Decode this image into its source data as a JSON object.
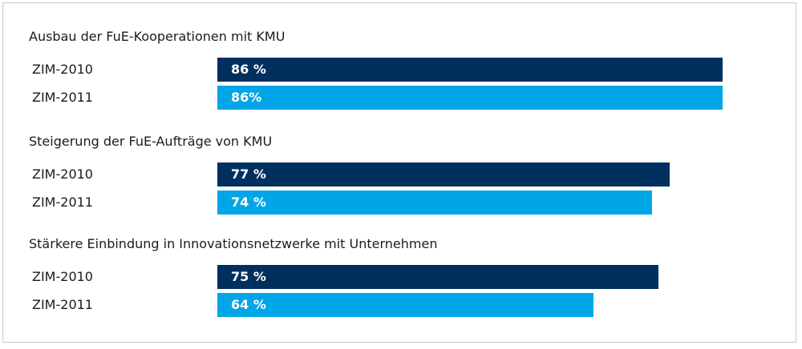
{
  "colors": {
    "series_2010": "#00305e",
    "series_2011": "#00a6e8"
  },
  "chart_data": {
    "type": "bar",
    "orientation": "horizontal",
    "title": "",
    "xlabel": "",
    "ylabel": "",
    "xlim": [
      0,
      100
    ],
    "grid": false,
    "groups": [
      {
        "title": "Ausbau der FuE-Kooperationen mit KMU",
        "bars": [
          {
            "label": "ZIM-2010",
            "value": 86,
            "value_label": "86 %",
            "color": "#00305e"
          },
          {
            "label": "ZIM-2011",
            "value": 86,
            "value_label": "86%",
            "color": "#00a6e8"
          }
        ]
      },
      {
        "title": "Steigerung der FuE-Aufträge von KMU",
        "bars": [
          {
            "label": "ZIM-2010",
            "value": 77,
            "value_label": "77 %",
            "color": "#00305e"
          },
          {
            "label": "ZIM-2011",
            "value": 74,
            "value_label": "74 %",
            "color": "#00a6e8"
          }
        ]
      },
      {
        "title": "Stärkere Einbindung in Innovationsnetzwerke mit Unternehmen",
        "bars": [
          {
            "label": "ZIM-2010",
            "value": 75,
            "value_label": "75 %",
            "color": "#00305e"
          },
          {
            "label": "ZIM-2011",
            "value": 64,
            "value_label": "64 %",
            "color": "#00a6e8"
          }
        ]
      }
    ]
  }
}
